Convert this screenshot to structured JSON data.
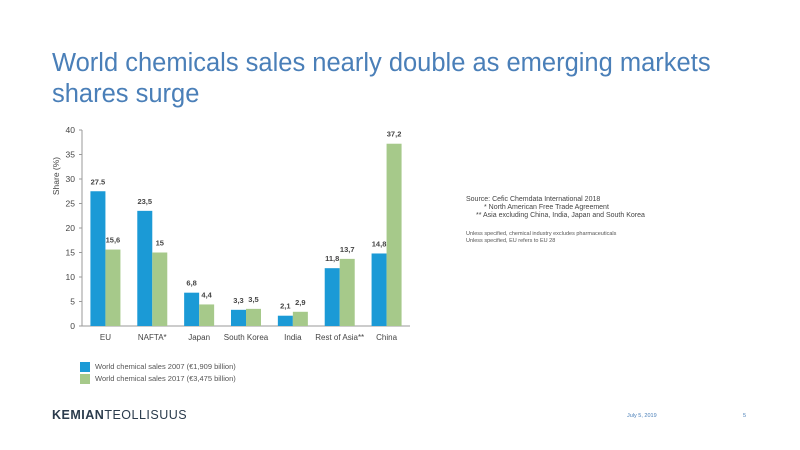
{
  "title": "World chemicals sales nearly double as emerging markets shares surge",
  "chart_data": {
    "type": "bar",
    "ylabel": "Share (%)",
    "ylim": [
      0,
      40
    ],
    "yticks": [
      0,
      5,
      10,
      15,
      20,
      25,
      30,
      35,
      40
    ],
    "categories": [
      "EU",
      "NAFTA*",
      "Japan",
      "South Korea",
      "India",
      "Rest of Asia**",
      "China"
    ],
    "series": [
      {
        "name": "World chemical sales 2007 (€1,909 billion)",
        "color": "#1b9ad6",
        "values": [
          27.5,
          23.5,
          6.8,
          3.3,
          2.1,
          11.8,
          14.8
        ],
        "labels": [
          "27.5",
          "23,5",
          "6,8",
          "3,3",
          "2,1",
          "11,8",
          "14,8"
        ]
      },
      {
        "name": "World chemical sales 2017 (€3,475 billion)",
        "color": "#a6c98a",
        "values": [
          15.6,
          15,
          4.4,
          3.5,
          2.9,
          13.7,
          37.2
        ],
        "labels": [
          "15,6",
          "15",
          "4,4",
          "3,5",
          "2,9",
          "13,7",
          "37,2"
        ]
      }
    ]
  },
  "source": {
    "lines": [
      "Source: Cefic Chemdata International 2018",
      "* North American Free Trade Agreement",
      "** Asia excluding China, India, Japan and South Korea"
    ],
    "notes": [
      "Unless specified, chemical industry excludes pharmaceuticals",
      "Unless specified, EU refers to EU 28"
    ]
  },
  "footer": {
    "logo_bold": "KEMIAN",
    "logo_regular": "TEOLLISUUS",
    "date": "July 5, 2019",
    "page": "5"
  }
}
